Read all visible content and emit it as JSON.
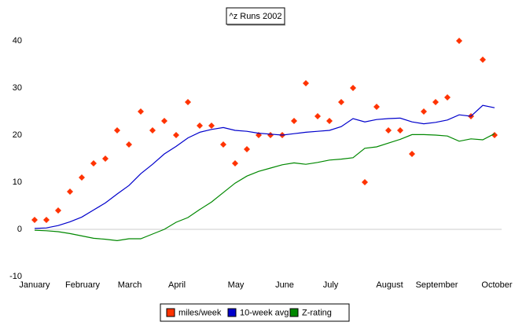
{
  "chart_data": {
    "type": "line",
    "title": "^z Runs 2002",
    "x": [
      0,
      1,
      2,
      3,
      4,
      5,
      6,
      7,
      8,
      9,
      10,
      11,
      12,
      13,
      14,
      15,
      16,
      17,
      18,
      19,
      20,
      21,
      22,
      23,
      24,
      25,
      26,
      27,
      28,
      29,
      30,
      31,
      32,
      33,
      34,
      35,
      36,
      37,
      38,
      39
    ],
    "xlim": [
      0,
      39.2
    ],
    "xticks": [
      {
        "value": 0,
        "label": "January"
      },
      {
        "value": 4.07,
        "label": "February"
      },
      {
        "value": 8.07,
        "label": "March"
      },
      {
        "value": 12.07,
        "label": "April"
      },
      {
        "value": 17.07,
        "label": "May"
      },
      {
        "value": 21.2,
        "label": "June"
      },
      {
        "value": 25.1,
        "label": "July"
      },
      {
        "value": 30.1,
        "label": "August"
      },
      {
        "value": 34.1,
        "label": "September"
      },
      {
        "value": 39.2,
        "label": "October"
      }
    ],
    "ylim": [
      -10,
      40
    ],
    "yticks": [
      -10,
      0,
      10,
      20,
      30,
      40
    ],
    "zero_line": true,
    "series": [
      {
        "name": "miles/week",
        "color": "#ff3300",
        "style": "markers",
        "values": [
          2,
          2,
          4,
          8,
          11,
          14,
          15,
          21,
          18,
          25,
          21,
          23,
          20,
          27,
          22,
          22,
          18,
          14,
          17,
          20,
          20,
          20,
          23,
          31,
          24,
          23,
          27,
          30,
          10,
          26,
          21,
          21,
          16,
          25,
          27,
          28,
          40,
          24,
          36,
          20
        ]
      },
      {
        "name": "10-week avg",
        "color": "#0000cc",
        "style": "line",
        "values": [
          0.2,
          0.3,
          0.8,
          1.6,
          2.6,
          4.1,
          5.6,
          7.5,
          9.3,
          11.8,
          13.8,
          16,
          17.6,
          19.4,
          20.6,
          21.2,
          21.6,
          21,
          20.8,
          20.4,
          20.2,
          20,
          20.3,
          20.6,
          20.8,
          21,
          21.8,
          23.5,
          22.8,
          23.3,
          23.5,
          23.6,
          22.8,
          22.4,
          22.7,
          23.2,
          24.3,
          24,
          26.3,
          25.8
        ]
      },
      {
        "name": "Z-rating",
        "color": "#008800",
        "style": "line",
        "values": [
          -0.2,
          -0.3,
          -0.5,
          -0.9,
          -1.4,
          -1.9,
          -2.1,
          -2.4,
          -2,
          -2,
          -1,
          0,
          1.5,
          2.5,
          4.2,
          5.8,
          7.8,
          9.8,
          11.3,
          12.3,
          13,
          13.7,
          14.1,
          13.8,
          14.2,
          14.7,
          14.9,
          15.2,
          17.2,
          17.5,
          18.3,
          19.1,
          20.1,
          20.1,
          20,
          19.8,
          18.7,
          19.2,
          19,
          20.3
        ]
      }
    ]
  }
}
